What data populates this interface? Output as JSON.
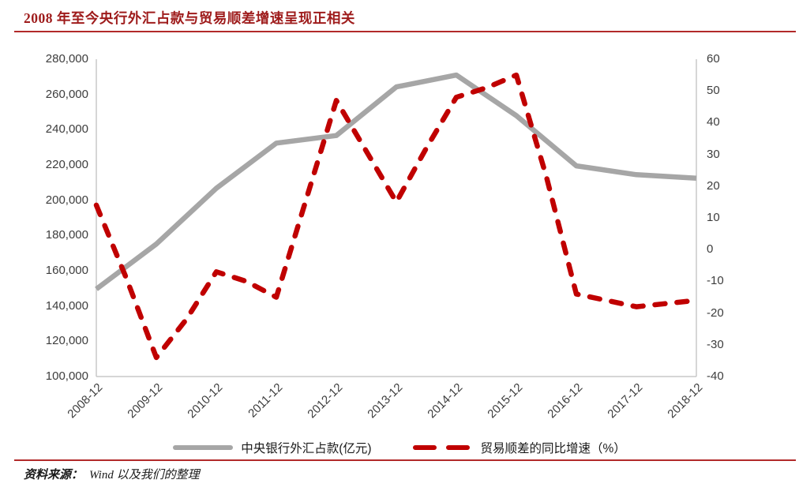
{
  "title": "2008 年至今央行外汇占款与贸易顺差增速呈现正相关",
  "source": {
    "prefix": "资料来源：",
    "text": "Wind 以及我们的整理"
  },
  "colors": {
    "title_red": "#9E1B1B",
    "rule_red": "#B22A2A",
    "axis_line_gray": "#C8C8C8",
    "tick_text": "#3D3D3D",
    "series_gray": "#A6A6A6",
    "series_red": "#C00000"
  },
  "chart_data": {
    "type": "line",
    "grid": false,
    "legend_position": "bottom",
    "x_tick_labels": [
      "2008-12",
      "2009-12",
      "2010-12",
      "2011-12",
      "2012-12",
      "2013-12",
      "2014-12",
      "2015-12",
      "2016-12",
      "2017-12",
      "2018-12"
    ],
    "left_axis": {
      "min": 100000,
      "max": 280000,
      "step": 20000,
      "tick_labels": [
        "280,000",
        "260,000",
        "240,000",
        "220,000",
        "200,000",
        "180,000",
        "160,000",
        "140,000",
        "120,000",
        "100,000"
      ]
    },
    "right_axis": {
      "min": -40,
      "max": 60,
      "step": 10,
      "tick_labels": [
        "60",
        "50",
        "40",
        "30",
        "20",
        "10",
        "0",
        "-10",
        "-20",
        "-30",
        "-40"
      ]
    },
    "series": [
      {
        "name": "中央银行外汇占款(亿元)",
        "axis": "left",
        "line_style": "solid",
        "color": "#A6A6A6",
        "x": [
          "2008-12",
          "2009-12",
          "2010-12",
          "2011-12",
          "2012-12",
          "2013-12",
          "2014-12",
          "2015-12",
          "2016-12",
          "2017-12",
          "2018-12"
        ],
        "values": [
          149600,
          175200,
          206800,
          232400,
          236700,
          264300,
          271000,
          248000,
          219500,
          214500,
          212500
        ]
      },
      {
        "name": "贸易顺差的同比增速（%）",
        "axis": "right",
        "line_style": "dashed",
        "color": "#C00000",
        "x": [
          "2008-12",
          "2009-06",
          "2009-12",
          "2010-06",
          "2010-12",
          "2011-06",
          "2011-12",
          "2012-06",
          "2012-12",
          "2013-06",
          "2013-12",
          "2014-06",
          "2014-12",
          "2015-06",
          "2015-12",
          "2016-06",
          "2016-12",
          "2017-06",
          "2017-12",
          "2018-06",
          "2018-12"
        ],
        "values": [
          14,
          -9,
          -34,
          -22,
          -7,
          -10,
          -15,
          16,
          47,
          31,
          15,
          32,
          48,
          51,
          55,
          23,
          -14,
          -16,
          -18,
          -17,
          -16
        ]
      }
    ]
  }
}
